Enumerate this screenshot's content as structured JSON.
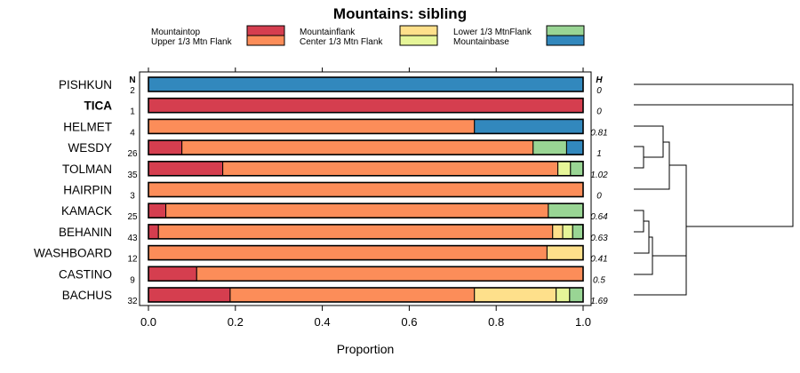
{
  "chart_data": {
    "type": "bar",
    "stacked": true,
    "orientation": "horizontal",
    "title": "Mountains: sibling",
    "xlabel": "Proportion",
    "xlim": [
      0,
      1
    ],
    "xticks": [
      "0.0",
      "0.2",
      "0.4",
      "0.6",
      "0.8",
      "1.0"
    ],
    "n_header": "N",
    "h_header": "H",
    "legend": [
      {
        "name": "Mountaintop",
        "color": "#d53e4f"
      },
      {
        "name": "Upper 1/3 Mtn Flank",
        "color": "#fc8d59"
      },
      {
        "name": "Mountainflank",
        "color": "#fee08b"
      },
      {
        "name": "Center 1/3 Mtn Flank",
        "color": "#e6f598"
      },
      {
        "name": "Lower 1/3 MtnFlank",
        "color": "#99d594"
      },
      {
        "name": "Mountainbase",
        "color": "#3288bd"
      }
    ],
    "categories": [
      {
        "name": "PISHKUN",
        "n": "2",
        "h": "0",
        "bold": false,
        "values": [
          0,
          0,
          0,
          0,
          0,
          1.0
        ]
      },
      {
        "name": "TICA",
        "n": "1",
        "h": "0",
        "bold": true,
        "values": [
          1.0,
          0,
          0,
          0,
          0,
          0
        ]
      },
      {
        "name": "HELMET",
        "n": "4",
        "h": "0.81",
        "bold": false,
        "values": [
          0,
          0.75,
          0,
          0,
          0,
          0.25
        ]
      },
      {
        "name": "WESDY",
        "n": "26",
        "h": "1",
        "bold": false,
        "values": [
          0.077,
          0.808,
          0,
          0,
          0.077,
          0.038
        ]
      },
      {
        "name": "TOLMAN",
        "n": "35",
        "h": "1.02",
        "bold": false,
        "values": [
          0.171,
          0.771,
          0,
          0.029,
          0.029,
          0
        ]
      },
      {
        "name": "HAIRPIN",
        "n": "3",
        "h": "0",
        "bold": false,
        "values": [
          0,
          1.0,
          0,
          0,
          0,
          0
        ]
      },
      {
        "name": "KAMACK",
        "n": "25",
        "h": "0.64",
        "bold": false,
        "values": [
          0.04,
          0.88,
          0,
          0,
          0.08,
          0
        ]
      },
      {
        "name": "BEHANIN",
        "n": "43",
        "h": "0.63",
        "bold": false,
        "values": [
          0.023,
          0.907,
          0.023,
          0.023,
          0.023,
          0
        ]
      },
      {
        "name": "WASHBOARD",
        "n": "12",
        "h": "0.41",
        "bold": false,
        "values": [
          0,
          0.917,
          0.083,
          0,
          0,
          0
        ]
      },
      {
        "name": "CASTINO",
        "n": "9",
        "h": "0.5",
        "bold": false,
        "values": [
          0.111,
          0.889,
          0,
          0,
          0,
          0
        ]
      },
      {
        "name": "BACHUS",
        "n": "32",
        "h": "1.69",
        "bold": false,
        "values": [
          0.188,
          0.562,
          0.188,
          0.031,
          0.031,
          0
        ]
      }
    ]
  }
}
